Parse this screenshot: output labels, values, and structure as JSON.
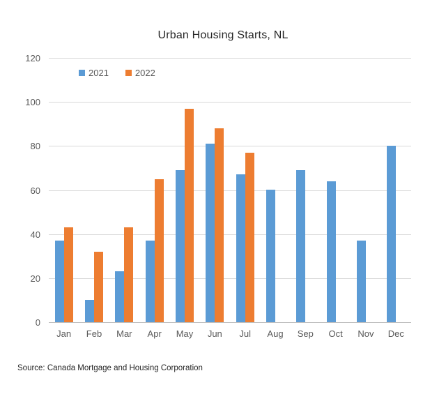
{
  "title": "Urban Housing Starts, NL",
  "source_note": "Source: Canada Mortgage and Housing Corporation",
  "colors": {
    "series_2021": "#5B9BD5",
    "series_2022": "#ED7D31",
    "gridline": "#D9D9D9",
    "axis_baseline": "#BFBFBF",
    "axis_text": "#595959",
    "title_text": "#262626"
  },
  "chart_data": {
    "type": "bar",
    "title": "Urban Housing Starts, NL",
    "categories": [
      "Jan",
      "Feb",
      "Mar",
      "Apr",
      "May",
      "Jun",
      "Jul",
      "Aug",
      "Sep",
      "Oct",
      "Nov",
      "Dec"
    ],
    "series": [
      {
        "name": "2021",
        "color": "#5B9BD5",
        "values": [
          37,
          10,
          23,
          37,
          69,
          81,
          67,
          60,
          69,
          64,
          37,
          80
        ]
      },
      {
        "name": "2022",
        "color": "#ED7D31",
        "values": [
          43,
          32,
          43,
          65,
          97,
          88,
          77,
          null,
          null,
          null,
          null,
          null
        ]
      }
    ],
    "xlabel": "",
    "ylabel": "",
    "ylim": [
      0,
      120
    ],
    "ytick_step": 20,
    "yticks": [
      0,
      20,
      40,
      60,
      80,
      100,
      120
    ],
    "grid": true,
    "legend_position": "top-left-inside"
  }
}
